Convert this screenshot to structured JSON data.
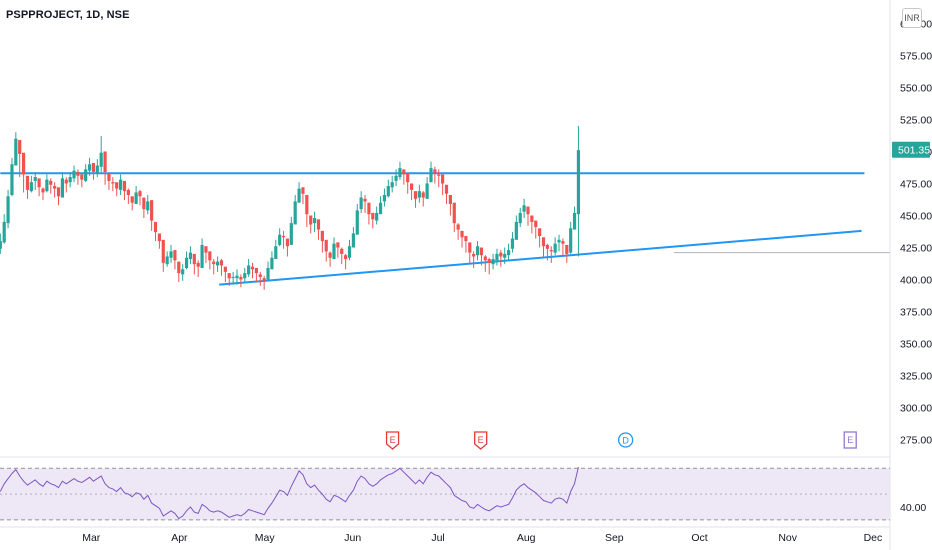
{
  "header": {
    "symbol_title": "PSPPROJECT, 1D, NSE",
    "currency_label": "INR"
  },
  "colors": {
    "up": "#26a69a",
    "down": "#ef5350",
    "trendline": "#2196f3",
    "rsi_line": "#7e57c2",
    "rsi_band_fill": "#ede7f6",
    "last_price_badge": "#26a69a",
    "earnings_marker": "#e53935",
    "future_earnings_marker": "#9575cd",
    "dividend_marker": "#2196f3"
  },
  "chart_data": [
    {
      "type": "candlestick",
      "title": "PSPPROJECT, 1D, NSE",
      "currency": "INR",
      "last_price": "501.35",
      "ylim": [
        263,
        612
      ],
      "y_ticks": [
        "600.00",
        "575.00",
        "550.00",
        "525.00",
        "500.00",
        "475.00",
        "450.00",
        "425.00",
        "400.00",
        "375.00",
        "350.00",
        "325.00",
        "300.00",
        "275.00"
      ],
      "y_tick_values": [
        600,
        575,
        550,
        525,
        500,
        475,
        450,
        425,
        400,
        375,
        350,
        325,
        300,
        275
      ],
      "x_labels": [
        "Mar",
        "Apr",
        "May",
        "Jun",
        "Jul",
        "Aug",
        "Sep",
        "Oct",
        "Nov",
        "Dec"
      ],
      "x_label_days": [
        35,
        66,
        96,
        127,
        157,
        188,
        219,
        249,
        280,
        310
      ],
      "x_domain_days": [
        5,
        316
      ],
      "candles_close": [
        430,
        445,
        465,
        490,
        510,
        498,
        482,
        470,
        476,
        480,
        472,
        468,
        478,
        474,
        471,
        465,
        479,
        475,
        480,
        485,
        481,
        478,
        486,
        490,
        484,
        489,
        499,
        484,
        477,
        475,
        471,
        478,
        469,
        466,
        460,
        468,
        465,
        455,
        461,
        446,
        437,
        430,
        413,
        418,
        422,
        415,
        405,
        408,
        417,
        421,
        412,
        410,
        427,
        421,
        415,
        412,
        414,
        411,
        406,
        401,
        402,
        403,
        400,
        405,
        411,
        408,
        405,
        402,
        399,
        409,
        417,
        426,
        435,
        433,
        426,
        444,
        461,
        471,
        467,
        451,
        443,
        448,
        439,
        430,
        422,
        417,
        428,
        425,
        420,
        416,
        426,
        436,
        454,
        464,
        461,
        451,
        447,
        452,
        460,
        466,
        473,
        476,
        481,
        487,
        482,
        476,
        470,
        463,
        469,
        464,
        475,
        487,
        483,
        481,
        475,
        467,
        459,
        444,
        439,
        433,
        430,
        421,
        418,
        426,
        419,
        415,
        413,
        416,
        420,
        418,
        420,
        423,
        432,
        445,
        452,
        458,
        451,
        445,
        441,
        434,
        426,
        424,
        422,
        428,
        431,
        428,
        420,
        440,
        452,
        501
      ],
      "candles_high": [
        436,
        451,
        470,
        495,
        515,
        503,
        487,
        475,
        481,
        484,
        477,
        472,
        482,
        479,
        476,
        470,
        484,
        480,
        484,
        489,
        486,
        483,
        490,
        495,
        488,
        494,
        512,
        488,
        482,
        480,
        475,
        482,
        474,
        471,
        464,
        473,
        470,
        460,
        466,
        451,
        442,
        434,
        418,
        422,
        427,
        420,
        410,
        412,
        422,
        426,
        416,
        415,
        432,
        426,
        419,
        416,
        418,
        416,
        410,
        405,
        406,
        408,
        404,
        409,
        416,
        413,
        409,
        406,
        403,
        414,
        422,
        431,
        440,
        438,
        431,
        449,
        466,
        476,
        472,
        456,
        447,
        453,
        444,
        434,
        427,
        422,
        433,
        429,
        425,
        420,
        431,
        441,
        459,
        469,
        466,
        456,
        452,
        457,
        465,
        471,
        478,
        481,
        486,
        492,
        486,
        481,
        474,
        467,
        474,
        469,
        480,
        492,
        488,
        486,
        479,
        472,
        463,
        449,
        444,
        437,
        434,
        425,
        422,
        430,
        424,
        419,
        417,
        420,
        424,
        423,
        425,
        428,
        437,
        450,
        456,
        463,
        456,
        449,
        445,
        439,
        431,
        428,
        426,
        433,
        435,
        432,
        424,
        445,
        457,
        520
      ],
      "candles_low": [
        420,
        428,
        440,
        465,
        490,
        480,
        468,
        463,
        468,
        470,
        465,
        462,
        468,
        467,
        464,
        458,
        466,
        468,
        472,
        476,
        474,
        472,
        476,
        481,
        478,
        480,
        484,
        474,
        470,
        469,
        465,
        466,
        462,
        459,
        454,
        460,
        458,
        448,
        451,
        438,
        430,
        424,
        406,
        410,
        413,
        408,
        398,
        399,
        408,
        412,
        404,
        402,
        418,
        413,
        408,
        404,
        406,
        403,
        398,
        395,
        396,
        396,
        394,
        398,
        402,
        401,
        398,
        395,
        392,
        400,
        408,
        418,
        426,
        424,
        418,
        430,
        444,
        460,
        459,
        441,
        436,
        437,
        431,
        421,
        414,
        410,
        418,
        417,
        412,
        408,
        415,
        426,
        438,
        452,
        452,
        443,
        440,
        443,
        452,
        457,
        464,
        468,
        473,
        478,
        474,
        467,
        462,
        456,
        460,
        457,
        463,
        476,
        475,
        472,
        466,
        459,
        450,
        437,
        431,
        425,
        421,
        412,
        409,
        415,
        411,
        406,
        404,
        408,
        411,
        410,
        412,
        415,
        421,
        432,
        441,
        448,
        442,
        436,
        432,
        425,
        418,
        415,
        413,
        419,
        422,
        419,
        413,
        420,
        440,
        418
      ],
      "candle_start_day": 3,
      "candle_step_days": 1.365,
      "trendlines": [
        {
          "from": {
            "day": 3,
            "value": 483
          },
          "to": {
            "day": 307,
            "value": 483
          }
        },
        {
          "from": {
            "day": 80,
            "value": 396
          },
          "to": {
            "day": 306,
            "value": 438
          }
        },
        {
          "from": {
            "day": 240,
            "value": 421
          },
          "to": {
            "day": 316,
            "value": 421
          }
        }
      ],
      "events": [
        {
          "label": "E",
          "kind": "earnings",
          "day": 141
        },
        {
          "label": "E",
          "kind": "earnings",
          "day": 172
        },
        {
          "label": "D",
          "kind": "dividend",
          "day": 223
        },
        {
          "label": "E",
          "kind": "earnings-future",
          "day": 302
        }
      ]
    },
    {
      "type": "line",
      "name": "RSI",
      "ylim": [
        26,
        78
      ],
      "y_ticks": [
        "40.00"
      ],
      "y_tick_values": [
        40
      ],
      "bands": [
        70,
        50,
        30
      ],
      "values": [
        52,
        58,
        62,
        66,
        69,
        64,
        60,
        57,
        59,
        61,
        58,
        56,
        60,
        58,
        57,
        55,
        60,
        58,
        60,
        62,
        60,
        59,
        61,
        63,
        60,
        62,
        64,
        58,
        55,
        54,
        52,
        55,
        51,
        50,
        48,
        51,
        50,
        46,
        49,
        43,
        41,
        39,
        33,
        35,
        37,
        35,
        31,
        33,
        37,
        40,
        36,
        35,
        42,
        40,
        37,
        36,
        37,
        36,
        34,
        32,
        33,
        34,
        33,
        35,
        38,
        37,
        36,
        35,
        34,
        39,
        43,
        48,
        53,
        52,
        49,
        56,
        62,
        68,
        65,
        58,
        55,
        57,
        53,
        50,
        46,
        44,
        49,
        48,
        46,
        44,
        49,
        53,
        60,
        64,
        62,
        58,
        56,
        58,
        61,
        63,
        65,
        66,
        68,
        70,
        67,
        64,
        61,
        58,
        61,
        58,
        63,
        67,
        65,
        64,
        61,
        58,
        55,
        49,
        47,
        45,
        44,
        40,
        39,
        42,
        40,
        38,
        37,
        39,
        41,
        40,
        41,
        42,
        47,
        53,
        56,
        58,
        55,
        53,
        51,
        48,
        45,
        44,
        43,
        46,
        47,
        46,
        43,
        52,
        58,
        71
      ]
    }
  ]
}
